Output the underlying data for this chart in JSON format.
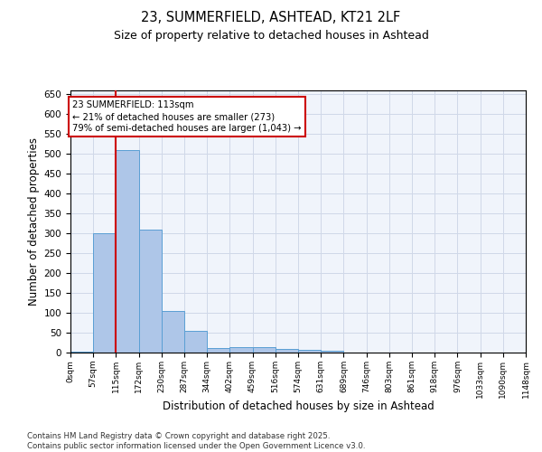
{
  "title_line1": "23, SUMMERFIELD, ASHTEAD, KT21 2LF",
  "title_line2": "Size of property relative to detached houses in Ashtead",
  "xlabel": "Distribution of detached houses by size in Ashtead",
  "ylabel": "Number of detached properties",
  "bin_edges": [
    0,
    57,
    115,
    172,
    230,
    287,
    344,
    402,
    459,
    516,
    574,
    631,
    689,
    746,
    803,
    861,
    918,
    976,
    1033,
    1090,
    1148
  ],
  "bin_labels": [
    "0sqm",
    "57sqm",
    "115sqm",
    "172sqm",
    "230sqm",
    "287sqm",
    "344sqm",
    "402sqm",
    "459sqm",
    "516sqm",
    "574sqm",
    "631sqm",
    "689sqm",
    "746sqm",
    "803sqm",
    "861sqm",
    "918sqm",
    "976sqm",
    "1033sqm",
    "1090sqm",
    "1148sqm"
  ],
  "bar_heights": [
    3,
    300,
    510,
    310,
    105,
    55,
    12,
    13,
    13,
    9,
    7,
    5,
    1,
    1,
    1,
    0,
    0,
    1,
    0,
    1,
    0
  ],
  "bar_color": "#aec6e8",
  "bar_edge_color": "#5a9fd4",
  "property_size": 113,
  "red_line_color": "#cc0000",
  "annotation_line1": "23 SUMMERFIELD: 113sqm",
  "annotation_line2": "← 21% of detached houses are smaller (273)",
  "annotation_line3": "79% of semi-detached houses are larger (1,043) →",
  "annotation_box_color": "#cc0000",
  "ylim": [
    0,
    660
  ],
  "yticks": [
    0,
    50,
    100,
    150,
    200,
    250,
    300,
    350,
    400,
    450,
    500,
    550,
    600,
    650
  ],
  "grid_color": "#d0d8e8",
  "background_color": "#f0f4fb",
  "footer_line1": "Contains HM Land Registry data © Crown copyright and database right 2025.",
  "footer_line2": "Contains public sector information licensed under the Open Government Licence v3.0."
}
